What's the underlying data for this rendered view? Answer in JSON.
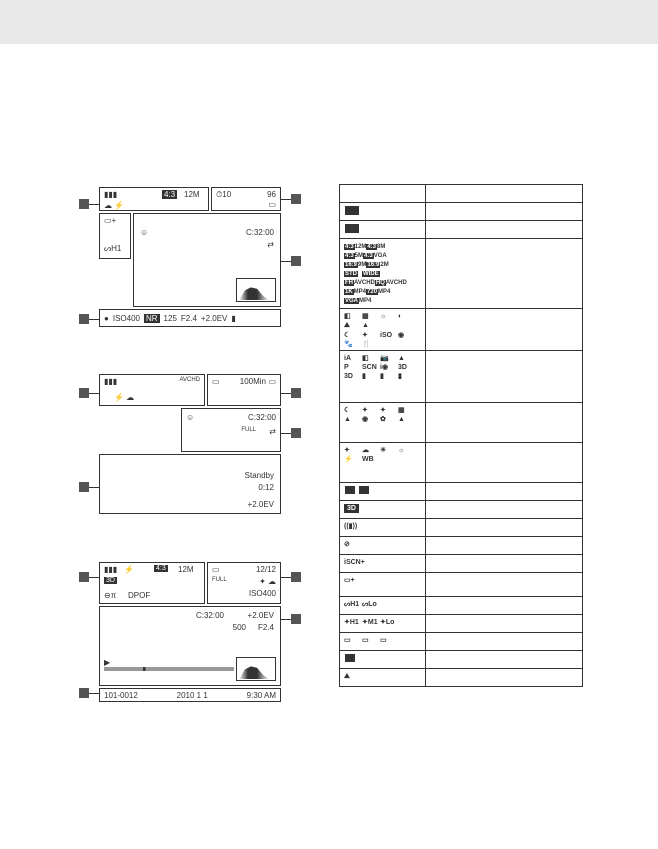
{
  "panel1": {
    "row1": {
      "battery": "▮▮▮",
      "aspect": "4:3",
      "mp": "12M",
      "timer": "⏱10",
      "count": "96",
      "card": "▭"
    },
    "row2": {
      "eye": "👁"
    },
    "row3": {
      "sh": "ᔕH1"
    },
    "row4": {
      "code": "C:32:00",
      "arrows": "⇄"
    },
    "bottom": {
      "iso_label": "ISO400",
      "nr": "NR",
      "shutter": "125",
      "f": "F2.4",
      "ev": "+2.0EV",
      "end": "▮"
    }
  },
  "panel2": {
    "row1": {
      "battery": "▮▮▮",
      "avchd": "AVCHD",
      "rec": "▭",
      "time": "100Min",
      "card": "▭"
    },
    "row3": {
      "o": "☺",
      "code": "C:32:00",
      "full": "FULL",
      "arrows": "⇄"
    },
    "bottom": {
      "standby": "Standby",
      "dur": "0:12",
      "ev": "+2.0EV"
    }
  },
  "panel3": {
    "row1": {
      "battery": "▮▮▮",
      "aspect": "4:3",
      "mp": "12M",
      "rec": "▭",
      "count": "12/12"
    },
    "row2": {
      "sd": "3D",
      "full": "FULL",
      "iso": "ISO400"
    },
    "row3": {
      "lock": "⊖π",
      "dpof": "DPOF"
    },
    "row4": {
      "code": "C:32:00",
      "ev": "+2.0EV",
      "shutter": "500",
      "f": "F2.4"
    },
    "bottom": {
      "folder": "101-0012",
      "date": "2010  1  1",
      "time": "9:30 AM"
    }
  },
  "table": {
    "row1": "▮▮▮",
    "row2": "▭",
    "row3": [
      "4:3 12M",
      "4:3 8M",
      "4:3 5M",
      "4:3 VGA",
      "16:9 9M",
      "16:9 2M",
      "STD",
      "WIDE",
      "FH AVCHD",
      "HQ AVCHD",
      "1K MP4",
      "720 MP4",
      "VGA MP4"
    ],
    "row4_scene": [
      "◧",
      "▦",
      "☼",
      "◐",
      "⛰",
      "▲",
      "☾",
      "✦",
      "iSO",
      "◉",
      "🐾",
      "🍴"
    ],
    "row5_mode": [
      "iA",
      "◧",
      "📷",
      "▲",
      "P",
      "SCN",
      "i◉",
      "3D",
      "3D",
      "▮",
      "▮",
      "▮"
    ],
    "row6_scene2": [
      "☾",
      "✦",
      "✦",
      "▦",
      "▲",
      "◉",
      "✿",
      "▲"
    ],
    "row7_wb": [
      "✦",
      "☁",
      "☀",
      "☼",
      "⚡",
      "WB"
    ],
    "row8": [
      "◧",
      "▦"
    ],
    "row9": "3D",
    "row10": "((▮))",
    "row11": "⊘",
    "row12": "iSCN+",
    "row13": "▭+",
    "row14": [
      "ᔕH1",
      "ᔕLo"
    ],
    "row15": [
      "✦H1",
      "✦M1",
      "✦Lo"
    ],
    "row16": [
      "▭",
      "▭",
      "▭"
    ],
    "row17": "▮",
    "row18": "⛰"
  }
}
